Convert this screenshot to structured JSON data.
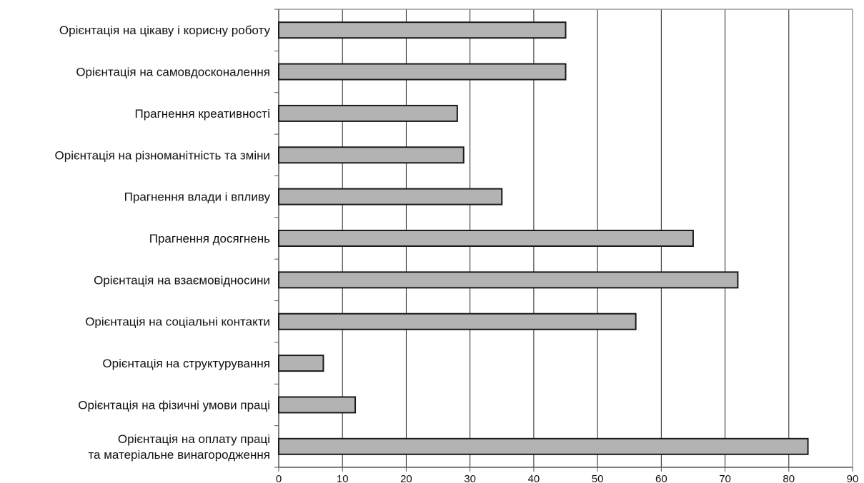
{
  "chart_data": {
    "type": "bar",
    "orientation": "horizontal",
    "title": "",
    "xlabel": "",
    "ylabel": "",
    "xlim": [
      0,
      90
    ],
    "x_ticks": [
      "0",
      "10",
      "20",
      "30",
      "40",
      "50",
      "60",
      "70",
      "80",
      "90"
    ],
    "grid": "vertical",
    "legend": "none",
    "categories": [
      [
        "Орієнтація на цікаву і корисну роботу"
      ],
      [
        "Орієнтація на самовдосконалення"
      ],
      [
        "Прагнення креативності"
      ],
      [
        "Орієнтація на різноманітність та зміни"
      ],
      [
        "Прагнення влади і впливу"
      ],
      [
        "Прагнення досягнень"
      ],
      [
        "Орієнтація на взаємовідносини"
      ],
      [
        "Орієнтація на соціальні контакти"
      ],
      [
        "Орієнтація на структурування"
      ],
      [
        "Орієнтація на фізичні умови праці"
      ],
      [
        "Орієнтація на оплату праці",
        "та матеріальне винагородження"
      ]
    ],
    "values": [
      45,
      45,
      28,
      29,
      35,
      65,
      72,
      56,
      7,
      12,
      83
    ],
    "colors": {
      "bar_fill": "#b3b3b3",
      "bar_stroke": "#1a1a1a",
      "grid": "#222222",
      "axis": "#555555",
      "frame": "#999999"
    }
  }
}
